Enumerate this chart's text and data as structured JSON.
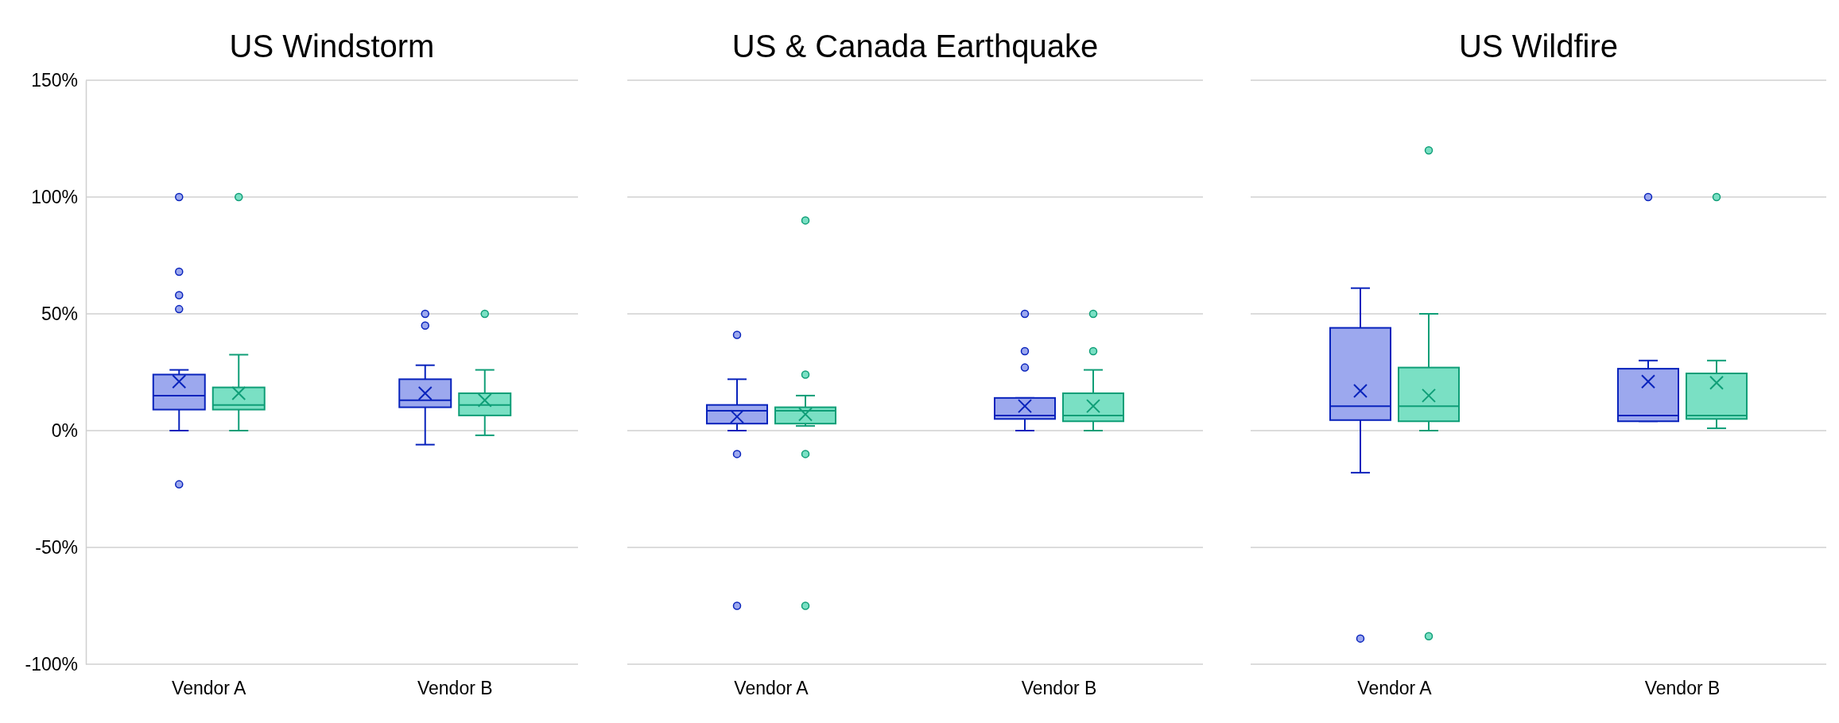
{
  "chart_data": [
    {
      "type": "box",
      "title": "US Windstorm",
      "categories": [
        "Vendor A",
        "Vendor B"
      ],
      "ylim": [
        -100,
        150
      ],
      "yticks": [
        {
          "value": -100,
          "label": "-100%"
        },
        {
          "value": -50,
          "label": "-50%"
        },
        {
          "value": 0,
          "label": "0%"
        },
        {
          "value": 50,
          "label": "50%"
        },
        {
          "value": 100,
          "label": "100%"
        },
        {
          "value": 150,
          "label": "150%"
        }
      ],
      "grid": "y",
      "marker": "circle",
      "series": [
        {
          "color": "#9ca8ee",
          "boxes": [
            {
              "low": 0,
              "q1": 9,
              "median": 15,
              "q3": 24,
              "high": 26,
              "mean": 21,
              "outliers": [
                100,
                68,
                58,
                52,
                -23
              ]
            },
            {
              "low": -6,
              "q1": 10,
              "median": 13,
              "q3": 22,
              "high": 28,
              "mean": 16,
              "outliers": [
                50,
                45
              ]
            }
          ]
        },
        {
          "color": "#7ae0c4",
          "boxes": [
            {
              "low": 0,
              "q1": 9,
              "median": 11,
              "q3": 18.5,
              "high": 32.5,
              "mean": 16,
              "outliers": [
                100
              ]
            },
            {
              "low": -2,
              "q1": 6.5,
              "median": 11,
              "q3": 16,
              "high": 26,
              "mean": 13,
              "outliers": [
                50
              ]
            }
          ]
        }
      ]
    },
    {
      "type": "box",
      "title": "US & Canada Earthquake",
      "categories": [
        "Vendor A",
        "Vendor B"
      ],
      "ylim": [
        -100,
        150
      ],
      "yticks": [
        {
          "value": -100,
          "label": null
        },
        {
          "value": -50,
          "label": null
        },
        {
          "value": 0,
          "label": null
        },
        {
          "value": 50,
          "label": null
        },
        {
          "value": 100,
          "label": null
        },
        {
          "value": 150,
          "label": null
        }
      ],
      "grid": "y",
      "marker": "circle",
      "tick_labels": "x",
      "series": [
        {
          "color": "#9ca8ee",
          "boxes": [
            {
              "low": 0,
              "q1": 3,
              "median": 8.5,
              "q3": 11,
              "high": 22,
              "mean": 6,
              "outliers": [
                41,
                -10,
                -75
              ]
            },
            {
              "low": 0,
              "q1": 5,
              "median": 6.5,
              "q3": 14,
              "high": 14,
              "mean": 10.5,
              "outliers": [
                50,
                34,
                27
              ]
            }
          ]
        },
        {
          "color": "#7ae0c4",
          "boxes": [
            {
              "low": 2,
              "q1": 3,
              "median": 8.5,
              "q3": 10,
              "high": 15,
              "mean": 7,
              "outliers": [
                90,
                24,
                -10,
                -75
              ]
            },
            {
              "low": 0,
              "q1": 4,
              "median": 6.5,
              "q3": 16,
              "high": 26,
              "mean": 10.5,
              "outliers": [
                50,
                34
              ]
            }
          ]
        }
      ]
    },
    {
      "type": "box",
      "title": "US Wildfire",
      "categories": [
        "Vendor A",
        "Vendor B"
      ],
      "ylim": [
        -100,
        150
      ],
      "yticks": [
        {
          "value": -100,
          "label": null
        },
        {
          "value": -50,
          "label": null
        },
        {
          "value": 0,
          "label": null
        },
        {
          "value": 50,
          "label": null
        },
        {
          "value": 100,
          "label": null
        },
        {
          "value": 150,
          "label": null
        }
      ],
      "grid": "y",
      "marker": "circle",
      "tick_labels": "x",
      "series": [
        {
          "color": "#9ca8ee",
          "boxes": [
            {
              "low": -18,
              "q1": 4.5,
              "median": 10.5,
              "q3": 44,
              "high": 61,
              "mean": 17,
              "outliers": [
                -89
              ]
            },
            {
              "low": 4,
              "q1": 4,
              "median": 6.5,
              "q3": 26.5,
              "high": 30,
              "mean": 21,
              "outliers": [
                100
              ]
            }
          ]
        },
        {
          "color": "#7ae0c4",
          "boxes": [
            {
              "low": 0,
              "q1": 4,
              "median": 10.5,
              "q3": 27,
              "high": 50,
              "mean": 15,
              "outliers": [
                120,
                -88
              ]
            },
            {
              "low": 1,
              "q1": 5,
              "median": 6.5,
              "q3": 24.5,
              "high": 30,
              "mean": 20.5,
              "outliers": [
                100
              ]
            }
          ]
        }
      ]
    }
  ]
}
